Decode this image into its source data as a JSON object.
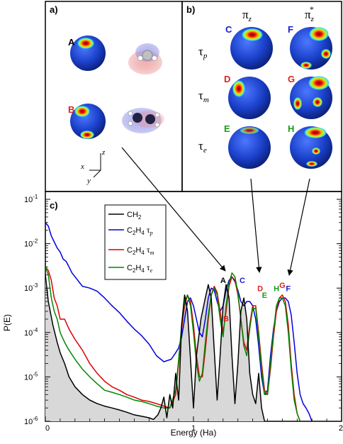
{
  "panels": {
    "a": {
      "label": "a)",
      "sphere_labels": [
        "A",
        "B"
      ],
      "axes": {
        "z": "z",
        "x": "x",
        "y": "y"
      }
    },
    "b": {
      "label": "b)",
      "columns": [
        {
          "base": "π",
          "sub": "z",
          "sup": ""
        },
        {
          "base": "π",
          "sub": "z",
          "sup": "*"
        }
      ],
      "rows": [
        {
          "base": "τ",
          "sub": "p"
        },
        {
          "base": "τ",
          "sub": "m"
        },
        {
          "base": "τ",
          "sub": "e"
        }
      ],
      "sphere_labels": [
        "C",
        "D",
        "E",
        "F",
        "G",
        "H"
      ]
    },
    "c": {
      "label": "c)"
    }
  },
  "colors": {
    "CH2": "#000000",
    "tau_p": "#0000dd",
    "tau_m": "#dd0000",
    "tau_e": "#008800",
    "fill": "#d8d8d8",
    "label_A": "#000000",
    "label_B": "#dd2222",
    "label_C": "#1a1ad0",
    "label_D": "#dd2222",
    "label_E": "#1d9a1d",
    "label_F": "#1a1ad0",
    "label_G": "#dd2222",
    "label_H": "#1d9a1d"
  },
  "chart_data": {
    "type": "line",
    "xlabel": "Energy (Ha)",
    "ylabel": "P(E)",
    "xlim": [
      0,
      2
    ],
    "ylim": [
      1e-06,
      0.15
    ],
    "yscale": "log",
    "x_ticks": [
      "0",
      "1",
      "2"
    ],
    "y_ticks": [
      {
        "base": "10",
        "exp": "-1"
      },
      {
        "base": "10",
        "exp": "-2"
      },
      {
        "base": "10",
        "exp": "-3"
      },
      {
        "base": "10",
        "exp": "-4"
      },
      {
        "base": "10",
        "exp": "-5"
      },
      {
        "base": "10",
        "exp": "-6"
      }
    ],
    "legend_position": "top-left",
    "legend": [
      {
        "base": "CH",
        "sub": "2",
        "tail": "",
        "tailsub": ""
      },
      {
        "base": "C",
        "sub": "2",
        "mid": "H",
        "sub2": "4",
        "tail": " τ",
        "tailsub": "p"
      },
      {
        "base": "C",
        "sub": "2",
        "mid": "H",
        "sub2": "4",
        "tail": " τ",
        "tailsub": "m"
      },
      {
        "base": "C",
        "sub": "2",
        "mid": "H",
        "sub2": "4",
        "tail": " τ",
        "tailsub": "e"
      }
    ],
    "peak_labels": [
      {
        "text": "A",
        "x": 1.2,
        "y": 0.0013
      },
      {
        "text": "B",
        "x": 1.22,
        "y": 0.00018
      },
      {
        "text": "C",
        "x": 1.33,
        "y": 0.0013
      },
      {
        "text": "D",
        "x": 1.45,
        "y": 0.00085
      },
      {
        "text": "E",
        "x": 1.48,
        "y": 0.0006
      },
      {
        "text": "G",
        "x": 1.6,
        "y": 0.001
      },
      {
        "text": "H",
        "x": 1.56,
        "y": 0.00085
      },
      {
        "text": "F",
        "x": 1.64,
        "y": 0.00085
      }
    ],
    "series": [
      {
        "key": "CH2",
        "x": [
          0.0,
          0.02,
          0.05,
          0.08,
          0.1,
          0.13,
          0.16,
          0.2,
          0.25,
          0.3,
          0.35,
          0.4,
          0.45,
          0.5,
          0.55,
          0.6,
          0.65,
          0.7,
          0.73,
          0.76,
          0.78,
          0.8,
          0.82,
          0.84,
          0.86,
          0.88,
          0.9,
          0.92,
          0.94,
          0.96,
          0.98,
          1.0,
          1.02,
          1.05,
          1.08,
          1.1,
          1.12,
          1.14,
          1.16,
          1.18,
          1.2,
          1.22,
          1.24,
          1.26,
          1.28,
          1.3,
          1.32,
          1.34,
          1.36,
          1.38,
          1.4,
          1.42,
          1.44,
          1.46,
          1.48
        ],
        "y": [
          0.002,
          0.0005,
          0.00015,
          6e-05,
          3.5e-05,
          2e-05,
          1e-05,
          6e-06,
          4e-06,
          3e-06,
          2.5e-06,
          2.2e-06,
          2e-06,
          1.8e-06,
          1.6e-06,
          1.4e-06,
          1.3e-06,
          1.2e-06,
          1.1e-06,
          1.4e-06,
          2e-06,
          3.5e-06,
          1.2e-06,
          4e-06,
          2e-06,
          1.2e-05,
          3e-06,
          0.00015,
          0.0007,
          0.0003,
          2.5e-05,
          2e-06,
          3e-05,
          0.0002,
          0.0006,
          0.0012,
          0.0006,
          4e-05,
          3e-06,
          3e-05,
          0.0004,
          0.0012,
          0.0006,
          3e-05,
          2.5e-06,
          2e-05,
          0.0003,
          0.0006,
          0.0002,
          1.2e-05,
          4e-06,
          2.5e-06,
          1.2e-05,
          2e-06,
          1e-06
        ]
      },
      {
        "key": "tau_p",
        "x": [
          0.0,
          0.02,
          0.04,
          0.06,
          0.08,
          0.1,
          0.12,
          0.14,
          0.16,
          0.18,
          0.2,
          0.25,
          0.3,
          0.35,
          0.4,
          0.45,
          0.5,
          0.55,
          0.6,
          0.65,
          0.7,
          0.75,
          0.8,
          0.85,
          0.88,
          0.9,
          0.92,
          0.94,
          0.96,
          0.98,
          1.0,
          1.02,
          1.04,
          1.06,
          1.08,
          1.1,
          1.12,
          1.14,
          1.16,
          1.18,
          1.2,
          1.22,
          1.24,
          1.26,
          1.28,
          1.3,
          1.32,
          1.34,
          1.36,
          1.38,
          1.4,
          1.42,
          1.44,
          1.46,
          1.48,
          1.5,
          1.52,
          1.54,
          1.56,
          1.58,
          1.6,
          1.62,
          1.64,
          1.66,
          1.68,
          1.7,
          1.72,
          1.74,
          1.76,
          1.78,
          1.8
        ],
        "y": [
          0.03,
          0.025,
          0.015,
          0.011,
          0.008,
          0.0065,
          0.0045,
          0.004,
          0.003,
          0.0022,
          0.0018,
          0.0011,
          0.001,
          0.00085,
          0.0006,
          0.0004,
          0.00028,
          0.00018,
          0.00012,
          8.5e-05,
          5.5e-05,
          3e-05,
          2.2e-05,
          2.5e-05,
          3.5e-05,
          4.5e-05,
          8e-05,
          0.0002,
          0.0005,
          0.0006,
          0.0004,
          0.0002,
          0.0001,
          8e-05,
          0.0002,
          0.0006,
          0.001,
          0.0009,
          0.0005,
          0.0003,
          0.0004,
          0.0009,
          0.0015,
          0.0018,
          0.0014,
          0.0009,
          0.0005,
          0.0004,
          0.0005,
          0.0005,
          0.0004,
          0.0002,
          5e-05,
          1e-05,
          4e-06,
          5e-06,
          3e-05,
          0.00012,
          0.0003,
          0.0005,
          0.0006,
          0.0006,
          0.0005,
          0.00025,
          6e-05,
          1.2e-05,
          4e-06,
          2.5e-06,
          2e-06,
          1.5e-06,
          1e-06
        ]
      },
      {
        "key": "tau_m",
        "x": [
          0.0,
          0.02,
          0.04,
          0.06,
          0.08,
          0.1,
          0.13,
          0.16,
          0.2,
          0.25,
          0.3,
          0.35,
          0.4,
          0.45,
          0.5,
          0.55,
          0.6,
          0.65,
          0.7,
          0.75,
          0.8,
          0.84,
          0.88,
          0.9,
          0.92,
          0.94,
          0.96,
          0.98,
          1.0,
          1.02,
          1.04,
          1.06,
          1.08,
          1.1,
          1.12,
          1.14,
          1.16,
          1.18,
          1.2,
          1.22,
          1.24,
          1.26,
          1.28,
          1.3,
          1.32,
          1.34,
          1.36,
          1.38,
          1.4,
          1.42,
          1.44,
          1.46,
          1.48,
          1.5,
          1.52,
          1.54,
          1.56,
          1.58,
          1.6,
          1.62,
          1.64,
          1.66,
          1.68,
          1.7,
          1.72
        ],
        "y": [
          0.003,
          0.0025,
          0.0015,
          0.0006,
          0.0004,
          0.0002,
          0.0002,
          0.00012,
          7e-05,
          4e-05,
          2e-05,
          1.2e-05,
          8e-06,
          6e-06,
          5e-06,
          4e-06,
          3.5e-06,
          3e-06,
          2.8e-06,
          2.5e-06,
          2.2e-06,
          2e-06,
          4e-06,
          2e-05,
          0.00012,
          0.0004,
          0.0007,
          0.0005,
          0.00015,
          3e-05,
          1e-05,
          1e-05,
          4e-05,
          0.0002,
          0.0007,
          0.0011,
          0.0008,
          0.0003,
          0.0001,
          0.0003,
          0.0011,
          0.0018,
          0.0015,
          0.0007,
          0.0002,
          6e-05,
          4e-05,
          0.00015,
          0.0004,
          0.0004,
          0.0001,
          2e-05,
          5e-06,
          4e-06,
          1.5e-05,
          8e-05,
          0.0003,
          0.0006,
          0.0007,
          0.0005,
          0.00015,
          2e-05,
          4e-06,
          1.5e-06,
          1e-06
        ]
      },
      {
        "key": "tau_e",
        "x": [
          0.0,
          0.02,
          0.04,
          0.06,
          0.08,
          0.1,
          0.13,
          0.16,
          0.2,
          0.25,
          0.3,
          0.35,
          0.4,
          0.45,
          0.5,
          0.55,
          0.6,
          0.65,
          0.7,
          0.75,
          0.8,
          0.84,
          0.88,
          0.9,
          0.92,
          0.94,
          0.96,
          0.98,
          1.0,
          1.02,
          1.04,
          1.06,
          1.08,
          1.1,
          1.12,
          1.14,
          1.16,
          1.18,
          1.2,
          1.22,
          1.24,
          1.26,
          1.28,
          1.3,
          1.32,
          1.34,
          1.36,
          1.38,
          1.4,
          1.42,
          1.44,
          1.46,
          1.48,
          1.5,
          1.52,
          1.54,
          1.56,
          1.58,
          1.6,
          1.62,
          1.64,
          1.66,
          1.68,
          1.7,
          1.72
        ],
        "y": [
          0.003,
          0.002,
          0.0006,
          0.0003,
          0.0002,
          0.0001,
          6e-05,
          4e-05,
          2.5e-05,
          1.5e-05,
          1e-05,
          7e-06,
          5e-06,
          4.5e-06,
          4e-06,
          3.5e-06,
          3e-06,
          2.8e-06,
          2.5e-06,
          2.2e-06,
          2e-06,
          2e-06,
          5e-06,
          2.5e-05,
          0.00015,
          0.0005,
          0.0007,
          0.0004,
          0.0001,
          2e-05,
          8e-06,
          1.2e-05,
          6e-05,
          0.00025,
          0.0007,
          0.001,
          0.0007,
          0.0002,
          8e-05,
          0.0004,
          0.0013,
          0.0022,
          0.0018,
          0.0008,
          0.0002,
          5e-05,
          3e-05,
          0.00012,
          0.00035,
          0.00035,
          8e-05,
          1.5e-05,
          4e-06,
          4e-06,
          2e-05,
          0.0001,
          0.0004,
          0.0006,
          0.0006,
          0.0004,
          0.0001,
          1.5e-05,
          3e-06,
          1.5e-06,
          1e-06
        ]
      }
    ]
  }
}
